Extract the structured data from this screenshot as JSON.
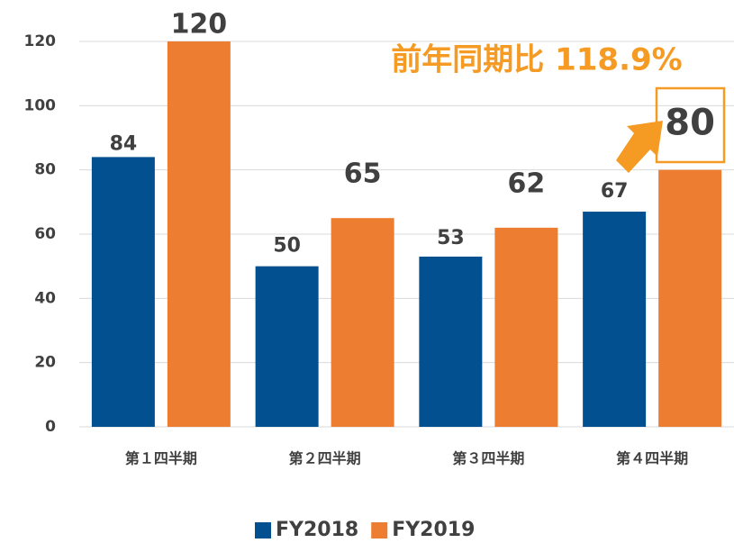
{
  "chart_data": {
    "type": "bar",
    "categories": [
      "第１四半期",
      "第２四半期",
      "第３四半期",
      "第４四半期"
    ],
    "series": [
      {
        "name": "FY2018",
        "color": "#02508f",
        "values": [
          84,
          50,
          53,
          67
        ]
      },
      {
        "name": "FY2019",
        "color": "#ed7d31",
        "values": [
          120,
          65,
          62,
          80
        ]
      }
    ],
    "ylim": [
      0,
      120
    ],
    "yticks": [
      0,
      20,
      40,
      60,
      80,
      100,
      120
    ],
    "grid": true,
    "annotation": "前年同期比 118.9%",
    "legend": "bottom"
  }
}
